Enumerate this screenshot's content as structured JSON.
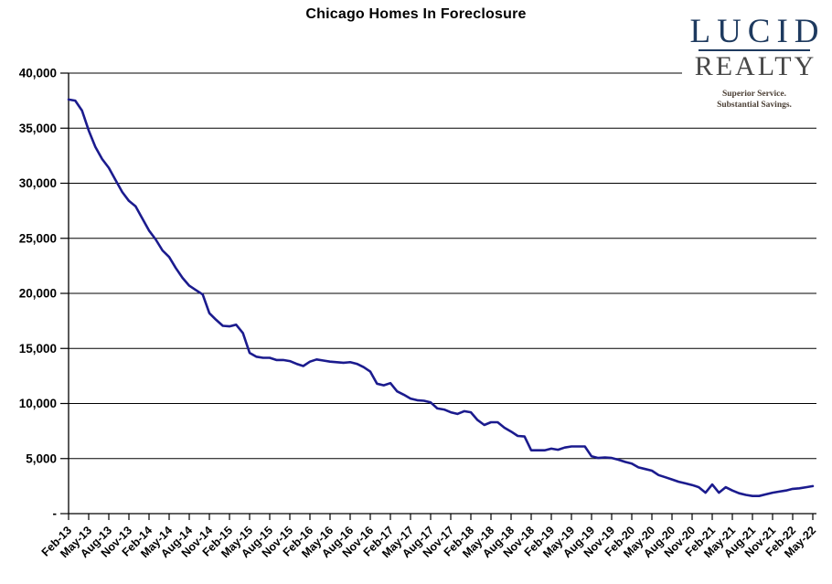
{
  "logo": {
    "name_top": "LUCID",
    "name_bottom": "REALTY",
    "tagline_line1": "Superior Service.",
    "tagline_line2": "Substantial Savings.",
    "name_top_color": "#1e3a5f",
    "name_bottom_color": "#474747",
    "tagline_color": "#4c4036"
  },
  "chart_data": {
    "type": "line",
    "title": "Chicago Homes In Foreclosure",
    "xlabel": "",
    "ylabel": "",
    "legend": "none",
    "grid": "horizontal",
    "line_color": "#1b1b8e",
    "axis_color": "#000000",
    "ylim": [
      0,
      40000
    ],
    "y_ticks": [
      0,
      5000,
      10000,
      15000,
      20000,
      25000,
      30000,
      35000,
      40000
    ],
    "y_tick_labels": [
      "-",
      "5,000",
      "10,000",
      "15,000",
      "20,000",
      "25,000",
      "30,000",
      "35,000",
      "40,000"
    ],
    "x_tick_labels": [
      "Feb-13",
      "May-13",
      "Aug-13",
      "Nov-13",
      "Feb-14",
      "May-14",
      "Aug-14",
      "Nov-14",
      "Feb-15",
      "May-15",
      "Aug-15",
      "Nov-15",
      "Feb-16",
      "May-16",
      "Aug-16",
      "Nov-16",
      "Feb-17",
      "May-17",
      "Aug-17",
      "Nov-17",
      "Feb-18",
      "May-18",
      "Aug-18",
      "Nov-18",
      "Feb-19",
      "May-19",
      "Aug-19",
      "Nov-19",
      "Feb-20",
      "May-20",
      "Aug-20",
      "Nov-20",
      "Feb-21",
      "May-21",
      "Aug-21",
      "Nov-21",
      "Feb-22",
      "May-22"
    ],
    "x": [
      "Feb-13",
      "Mar-13",
      "Apr-13",
      "May-13",
      "Jun-13",
      "Jul-13",
      "Aug-13",
      "Sep-13",
      "Oct-13",
      "Nov-13",
      "Dec-13",
      "Jan-14",
      "Feb-14",
      "Mar-14",
      "Apr-14",
      "May-14",
      "Jun-14",
      "Jul-14",
      "Aug-14",
      "Sep-14",
      "Oct-14",
      "Nov-14",
      "Dec-14",
      "Jan-15",
      "Feb-15",
      "Mar-15",
      "Apr-15",
      "May-15",
      "Jun-15",
      "Jul-15",
      "Aug-15",
      "Sep-15",
      "Oct-15",
      "Nov-15",
      "Dec-15",
      "Jan-16",
      "Feb-16",
      "Mar-16",
      "Apr-16",
      "May-16",
      "Jun-16",
      "Jul-16",
      "Aug-16",
      "Sep-16",
      "Oct-16",
      "Nov-16",
      "Dec-16",
      "Jan-17",
      "Feb-17",
      "Mar-17",
      "Apr-17",
      "May-17",
      "Jun-17",
      "Jul-17",
      "Aug-17",
      "Sep-17",
      "Oct-17",
      "Nov-17",
      "Dec-17",
      "Jan-18",
      "Feb-18",
      "Mar-18",
      "Apr-18",
      "May-18",
      "Jun-18",
      "Jul-18",
      "Aug-18",
      "Sep-18",
      "Oct-18",
      "Nov-18",
      "Dec-18",
      "Jan-19",
      "Feb-19",
      "Mar-19",
      "Apr-19",
      "May-19",
      "Jun-19",
      "Jul-19",
      "Aug-19",
      "Sep-19",
      "Oct-19",
      "Nov-19",
      "Dec-19",
      "Jan-20",
      "Feb-20",
      "Mar-20",
      "Apr-20",
      "May-20",
      "Jun-20",
      "Jul-20",
      "Aug-20",
      "Sep-20",
      "Oct-20",
      "Nov-20",
      "Dec-20",
      "Jan-21",
      "Feb-21",
      "Mar-21",
      "Apr-21",
      "May-21",
      "Jun-21",
      "Jul-21",
      "Aug-21",
      "Sep-21",
      "Oct-21",
      "Nov-21",
      "Dec-21",
      "Jan-22",
      "Feb-22",
      "Mar-22",
      "Apr-22",
      "May-22"
    ],
    "values": [
      37600,
      37500,
      36600,
      34800,
      33300,
      32200,
      31400,
      30300,
      29200,
      28400,
      27900,
      26800,
      25700,
      24900,
      23900,
      23300,
      22300,
      21400,
      20700,
      20300,
      19900,
      18200,
      17600,
      17050,
      17000,
      17150,
      16400,
      14600,
      14250,
      14150,
      14150,
      13950,
      13950,
      13850,
      13600,
      13400,
      13800,
      14000,
      13900,
      13800,
      13750,
      13700,
      13750,
      13600,
      13300,
      12900,
      11800,
      11650,
      11850,
      11100,
      10800,
      10450,
      10300,
      10250,
      10100,
      9550,
      9450,
      9200,
      9050,
      9300,
      9200,
      8500,
      8050,
      8300,
      8300,
      7800,
      7450,
      7050,
      7000,
      5750,
      5750,
      5750,
      5900,
      5800,
      6000,
      6100,
      6100,
      6100,
      5200,
      5050,
      5100,
      5050,
      4900,
      4700,
      4550,
      4200,
      4050,
      3900,
      3500,
      3300,
      3100,
      2900,
      2750,
      2600,
      2400,
      1900,
      2650,
      1900,
      2400,
      2100,
      1850,
      1700,
      1600,
      1600,
      1750,
      1900,
      2000,
      2100,
      2250,
      2300,
      2400,
      2500
    ]
  }
}
